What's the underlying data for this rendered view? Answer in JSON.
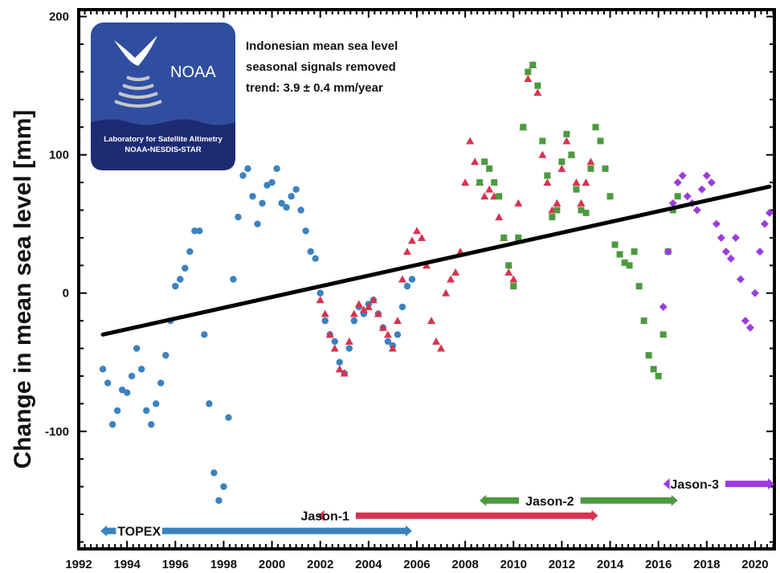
{
  "colors": {
    "topex": "#3b82bf",
    "jason1": "#d6334f",
    "jason2": "#4c9a3f",
    "jason3": "#9b3be0",
    "trend": "#000000",
    "logo_bg": "#2f4ea0",
    "logo_band": "#1d2b73"
  },
  "logo": {
    "name": "NOAA",
    "line1": "Laboratory for Satellite Altimetry",
    "line2": "NOAA•NESDIS•STAR"
  },
  "chart_data": {
    "type": "scatter",
    "title_lines": [
      "Indonesian mean sea level",
      "seasonal signals removed",
      "trend:  3.9 ± 0.4 mm/year"
    ],
    "xlabel": "",
    "ylabel": "Change in mean sea level [mm]",
    "xlim": [
      1992,
      2020.8
    ],
    "ylim": [
      -185,
      205
    ],
    "x_ticks": [
      1992,
      1994,
      1996,
      1998,
      2000,
      2002,
      2004,
      2006,
      2008,
      2010,
      2012,
      2014,
      2016,
      2018,
      2020
    ],
    "y_ticks": [
      -100,
      0,
      100,
      200
    ],
    "trend_line": {
      "x": [
        1993,
        2020.6
      ],
      "y": [
        -30,
        77
      ]
    },
    "series": [
      {
        "name": "TOPEX",
        "marker": "circle",
        "coverage": [
          1992.9,
          2005.8
        ],
        "points": [
          [
            1993.0,
            -55
          ],
          [
            1993.2,
            -65
          ],
          [
            1993.4,
            -95
          ],
          [
            1993.6,
            -85
          ],
          [
            1993.8,
            -70
          ],
          [
            1994.0,
            -72
          ],
          [
            1994.2,
            -60
          ],
          [
            1994.4,
            -40
          ],
          [
            1994.6,
            -55
          ],
          [
            1994.8,
            -85
          ],
          [
            1995.0,
            -95
          ],
          [
            1995.2,
            -80
          ],
          [
            1995.4,
            -65
          ],
          [
            1995.6,
            -45
          ],
          [
            1995.8,
            -20
          ],
          [
            1996.0,
            5
          ],
          [
            1996.2,
            10
          ],
          [
            1996.4,
            18
          ],
          [
            1996.6,
            30
          ],
          [
            1996.8,
            45
          ],
          [
            1997.0,
            45
          ],
          [
            1997.2,
            -30
          ],
          [
            1997.4,
            -80
          ],
          [
            1997.6,
            -130
          ],
          [
            1997.8,
            -150
          ],
          [
            1998.0,
            -140
          ],
          [
            1998.2,
            -90
          ],
          [
            1998.4,
            10
          ],
          [
            1998.6,
            55
          ],
          [
            1998.8,
            85
          ],
          [
            1999.0,
            90
          ],
          [
            1999.2,
            70
          ],
          [
            1999.4,
            50
          ],
          [
            1999.6,
            65
          ],
          [
            1999.8,
            78
          ],
          [
            2000.0,
            80
          ],
          [
            2000.2,
            90
          ],
          [
            2000.4,
            65
          ],
          [
            2000.6,
            62
          ],
          [
            2000.8,
            70
          ],
          [
            2001.0,
            75
          ],
          [
            2001.2,
            60
          ],
          [
            2001.4,
            45
          ],
          [
            2001.6,
            30
          ],
          [
            2001.8,
            25
          ],
          [
            2002.0,
            0
          ],
          [
            2002.2,
            -20
          ],
          [
            2002.4,
            -30
          ],
          [
            2002.6,
            -35
          ],
          [
            2002.8,
            -50
          ],
          [
            2003.0,
            -58
          ],
          [
            2003.2,
            -40
          ],
          [
            2003.4,
            -20
          ],
          [
            2003.6,
            -10
          ],
          [
            2003.8,
            -15
          ],
          [
            2004.0,
            -8
          ],
          [
            2004.2,
            -5
          ],
          [
            2004.4,
            -15
          ],
          [
            2004.6,
            -25
          ],
          [
            2004.8,
            -35
          ],
          [
            2005.0,
            -38
          ],
          [
            2005.2,
            -30
          ],
          [
            2005.4,
            -10
          ],
          [
            2005.6,
            5
          ],
          [
            2005.8,
            10
          ]
        ]
      },
      {
        "name": "Jason-1",
        "marker": "triangle",
        "coverage": [
          2001.9,
          2013.5
        ],
        "points": [
          [
            2002.0,
            -5
          ],
          [
            2002.2,
            -15
          ],
          [
            2002.4,
            -30
          ],
          [
            2002.6,
            -40
          ],
          [
            2002.8,
            -55
          ],
          [
            2003.0,
            -58
          ],
          [
            2003.2,
            -35
          ],
          [
            2003.4,
            -15
          ],
          [
            2003.6,
            -8
          ],
          [
            2003.8,
            -12
          ],
          [
            2004.0,
            -10
          ],
          [
            2004.2,
            -5
          ],
          [
            2004.4,
            -15
          ],
          [
            2004.6,
            -25
          ],
          [
            2004.8,
            -30
          ],
          [
            2005.0,
            -40
          ],
          [
            2005.2,
            -20
          ],
          [
            2005.4,
            10
          ],
          [
            2005.6,
            30
          ],
          [
            2005.8,
            38
          ],
          [
            2006.0,
            45
          ],
          [
            2006.2,
            40
          ],
          [
            2006.4,
            20
          ],
          [
            2006.6,
            -20
          ],
          [
            2006.8,
            -35
          ],
          [
            2007.0,
            -40
          ],
          [
            2007.2,
            0
          ],
          [
            2007.4,
            10
          ],
          [
            2007.6,
            15
          ],
          [
            2007.8,
            30
          ],
          [
            2008.0,
            80
          ],
          [
            2008.2,
            110
          ],
          [
            2008.4,
            95
          ],
          [
            2008.6,
            80
          ],
          [
            2008.8,
            70
          ],
          [
            2009.0,
            75
          ],
          [
            2009.2,
            70
          ],
          [
            2009.4,
            55
          ],
          [
            2009.6,
            40
          ],
          [
            2009.8,
            15
          ],
          [
            2010.0,
            10
          ],
          [
            2010.2,
            65
          ],
          [
            2010.4,
            120
          ],
          [
            2010.6,
            155
          ],
          [
            2010.8,
            165
          ],
          [
            2011.0,
            145
          ],
          [
            2011.2,
            100
          ],
          [
            2011.4,
            80
          ],
          [
            2011.6,
            60
          ],
          [
            2011.8,
            65
          ],
          [
            2012.0,
            90
          ],
          [
            2012.2,
            110
          ],
          [
            2012.4,
            100
          ],
          [
            2012.6,
            80
          ],
          [
            2012.8,
            65
          ],
          [
            2013.0,
            80
          ],
          [
            2013.2,
            95
          ]
        ]
      },
      {
        "name": "Jason-2",
        "marker": "square",
        "coverage": [
          2008.6,
          2016.8
        ],
        "points": [
          [
            2008.6,
            80
          ],
          [
            2008.8,
            95
          ],
          [
            2009.0,
            90
          ],
          [
            2009.2,
            80
          ],
          [
            2009.4,
            70
          ],
          [
            2009.6,
            40
          ],
          [
            2009.8,
            20
          ],
          [
            2010.0,
            5
          ],
          [
            2010.2,
            40
          ],
          [
            2010.4,
            120
          ],
          [
            2010.6,
            160
          ],
          [
            2010.8,
            165
          ],
          [
            2011.0,
            150
          ],
          [
            2011.2,
            110
          ],
          [
            2011.4,
            85
          ],
          [
            2011.6,
            55
          ],
          [
            2011.8,
            60
          ],
          [
            2012.0,
            95
          ],
          [
            2012.2,
            115
          ],
          [
            2012.4,
            100
          ],
          [
            2012.6,
            75
          ],
          [
            2012.8,
            60
          ],
          [
            2013.0,
            58
          ],
          [
            2013.2,
            90
          ],
          [
            2013.4,
            120
          ],
          [
            2013.6,
            110
          ],
          [
            2013.8,
            90
          ],
          [
            2014.0,
            70
          ],
          [
            2014.2,
            35
          ],
          [
            2014.4,
            28
          ],
          [
            2014.6,
            22
          ],
          [
            2014.8,
            20
          ],
          [
            2015.0,
            30
          ],
          [
            2015.2,
            5
          ],
          [
            2015.4,
            -20
          ],
          [
            2015.6,
            -45
          ],
          [
            2015.8,
            -55
          ],
          [
            2016.0,
            -60
          ],
          [
            2016.2,
            -30
          ],
          [
            2016.4,
            30
          ],
          [
            2016.6,
            60
          ],
          [
            2016.8,
            70
          ]
        ]
      },
      {
        "name": "Jason-3",
        "marker": "diamond",
        "coverage": [
          2016.2,
          2020.8
        ],
        "points": [
          [
            2016.2,
            -10
          ],
          [
            2016.4,
            30
          ],
          [
            2016.6,
            65
          ],
          [
            2016.8,
            80
          ],
          [
            2017.0,
            85
          ],
          [
            2017.2,
            70
          ],
          [
            2017.4,
            65
          ],
          [
            2017.6,
            60
          ],
          [
            2017.8,
            75
          ],
          [
            2018.0,
            85
          ],
          [
            2018.2,
            80
          ],
          [
            2018.4,
            50
          ],
          [
            2018.6,
            40
          ],
          [
            2018.8,
            30
          ],
          [
            2019.0,
            25
          ],
          [
            2019.2,
            40
          ],
          [
            2019.4,
            10
          ],
          [
            2019.6,
            -20
          ],
          [
            2019.8,
            -25
          ],
          [
            2020.0,
            0
          ],
          [
            2020.2,
            30
          ],
          [
            2020.4,
            50
          ],
          [
            2020.6,
            58
          ]
        ]
      }
    ]
  }
}
